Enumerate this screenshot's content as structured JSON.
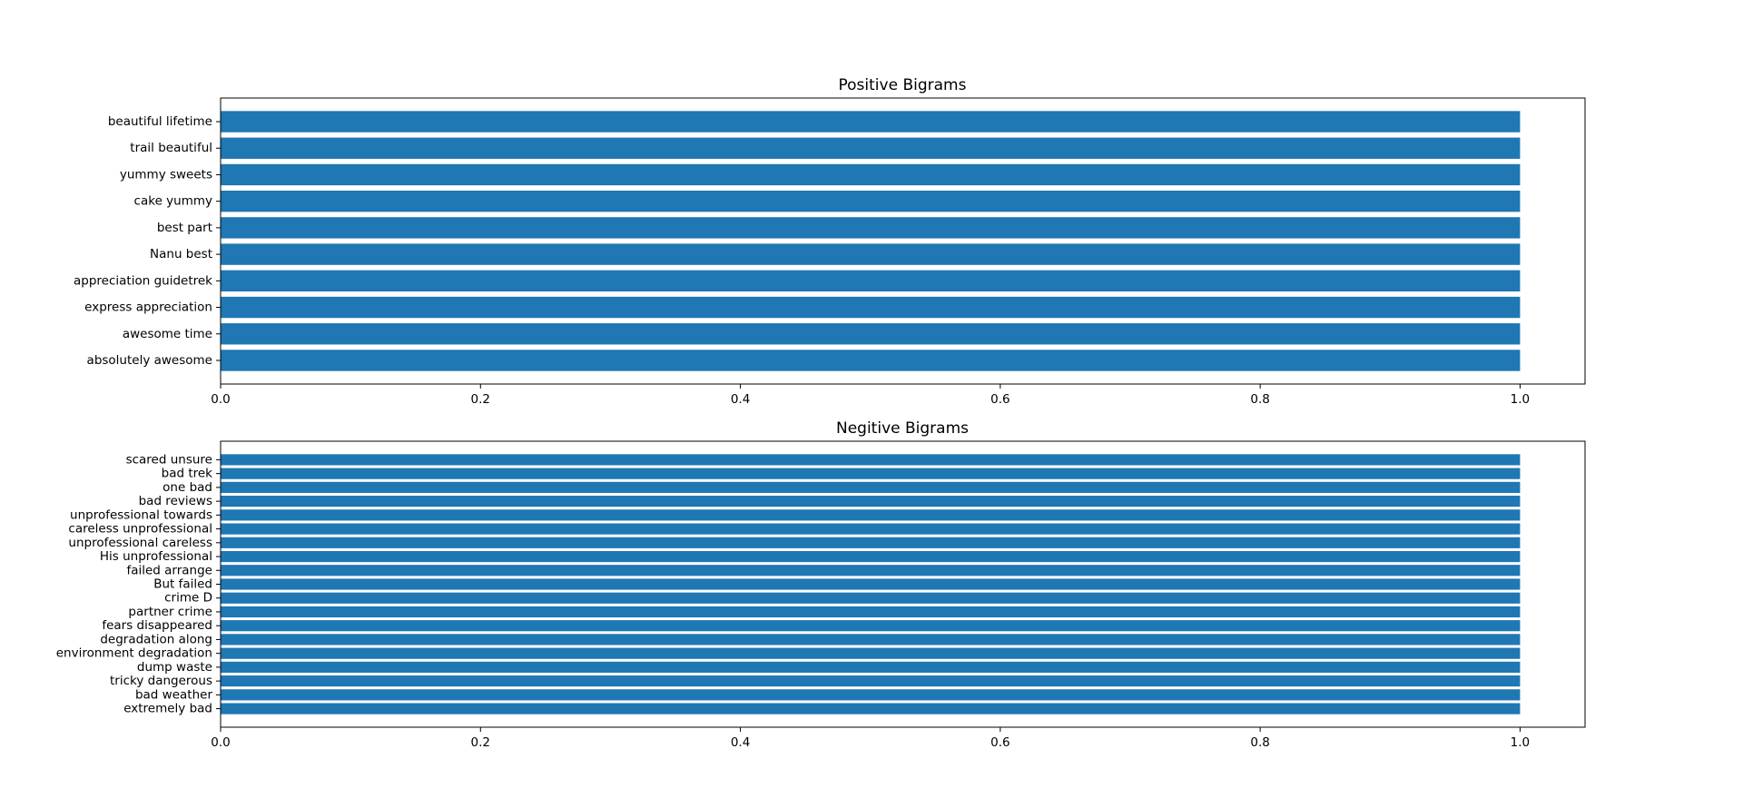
{
  "chart_data": [
    {
      "type": "bar",
      "orientation": "horizontal",
      "title": "Positive Bigrams",
      "xlabel": "",
      "ylabel": "",
      "categories": [
        "absolutely awesome",
        "awesome time",
        "express appreciation",
        "appreciation guidetrek",
        "Nanu best",
        "best part",
        "cake yummy",
        "yummy sweets",
        "trail beautiful",
        "beautiful lifetime"
      ],
      "values": [
        1,
        1,
        1,
        1,
        1,
        1,
        1,
        1,
        1,
        1
      ],
      "xlim": [
        0,
        1.05
      ],
      "xticks": [
        0.0,
        0.2,
        0.4,
        0.6,
        0.8,
        1.0
      ],
      "xtick_labels": [
        "0.0",
        "0.2",
        "0.4",
        "0.6",
        "0.8",
        "1.0"
      ],
      "bar_color": "#1f77b4",
      "grid": false
    },
    {
      "type": "bar",
      "orientation": "horizontal",
      "title": "Negitive Bigrams",
      "xlabel": "",
      "ylabel": "",
      "categories": [
        "extremely bad",
        "bad weather",
        "tricky dangerous",
        "dump waste",
        "environment degradation",
        "degradation along",
        "fears disappeared",
        "partner crime",
        "crime D",
        "But failed",
        "failed arrange",
        "His unprofessional",
        "unprofessional careless",
        "careless unprofessional",
        "unprofessional towards",
        "bad reviews",
        "one bad",
        "bad trek",
        "scared unsure"
      ],
      "values": [
        1,
        1,
        1,
        1,
        1,
        1,
        1,
        1,
        1,
        1,
        1,
        1,
        1,
        1,
        1,
        1,
        1,
        1,
        1
      ],
      "xlim": [
        0,
        1.05
      ],
      "xticks": [
        0.0,
        0.2,
        0.4,
        0.6,
        0.8,
        1.0
      ],
      "xtick_labels": [
        "0.0",
        "0.2",
        "0.4",
        "0.6",
        "0.8",
        "1.0"
      ],
      "bar_color": "#1f77b4",
      "grid": false
    }
  ]
}
